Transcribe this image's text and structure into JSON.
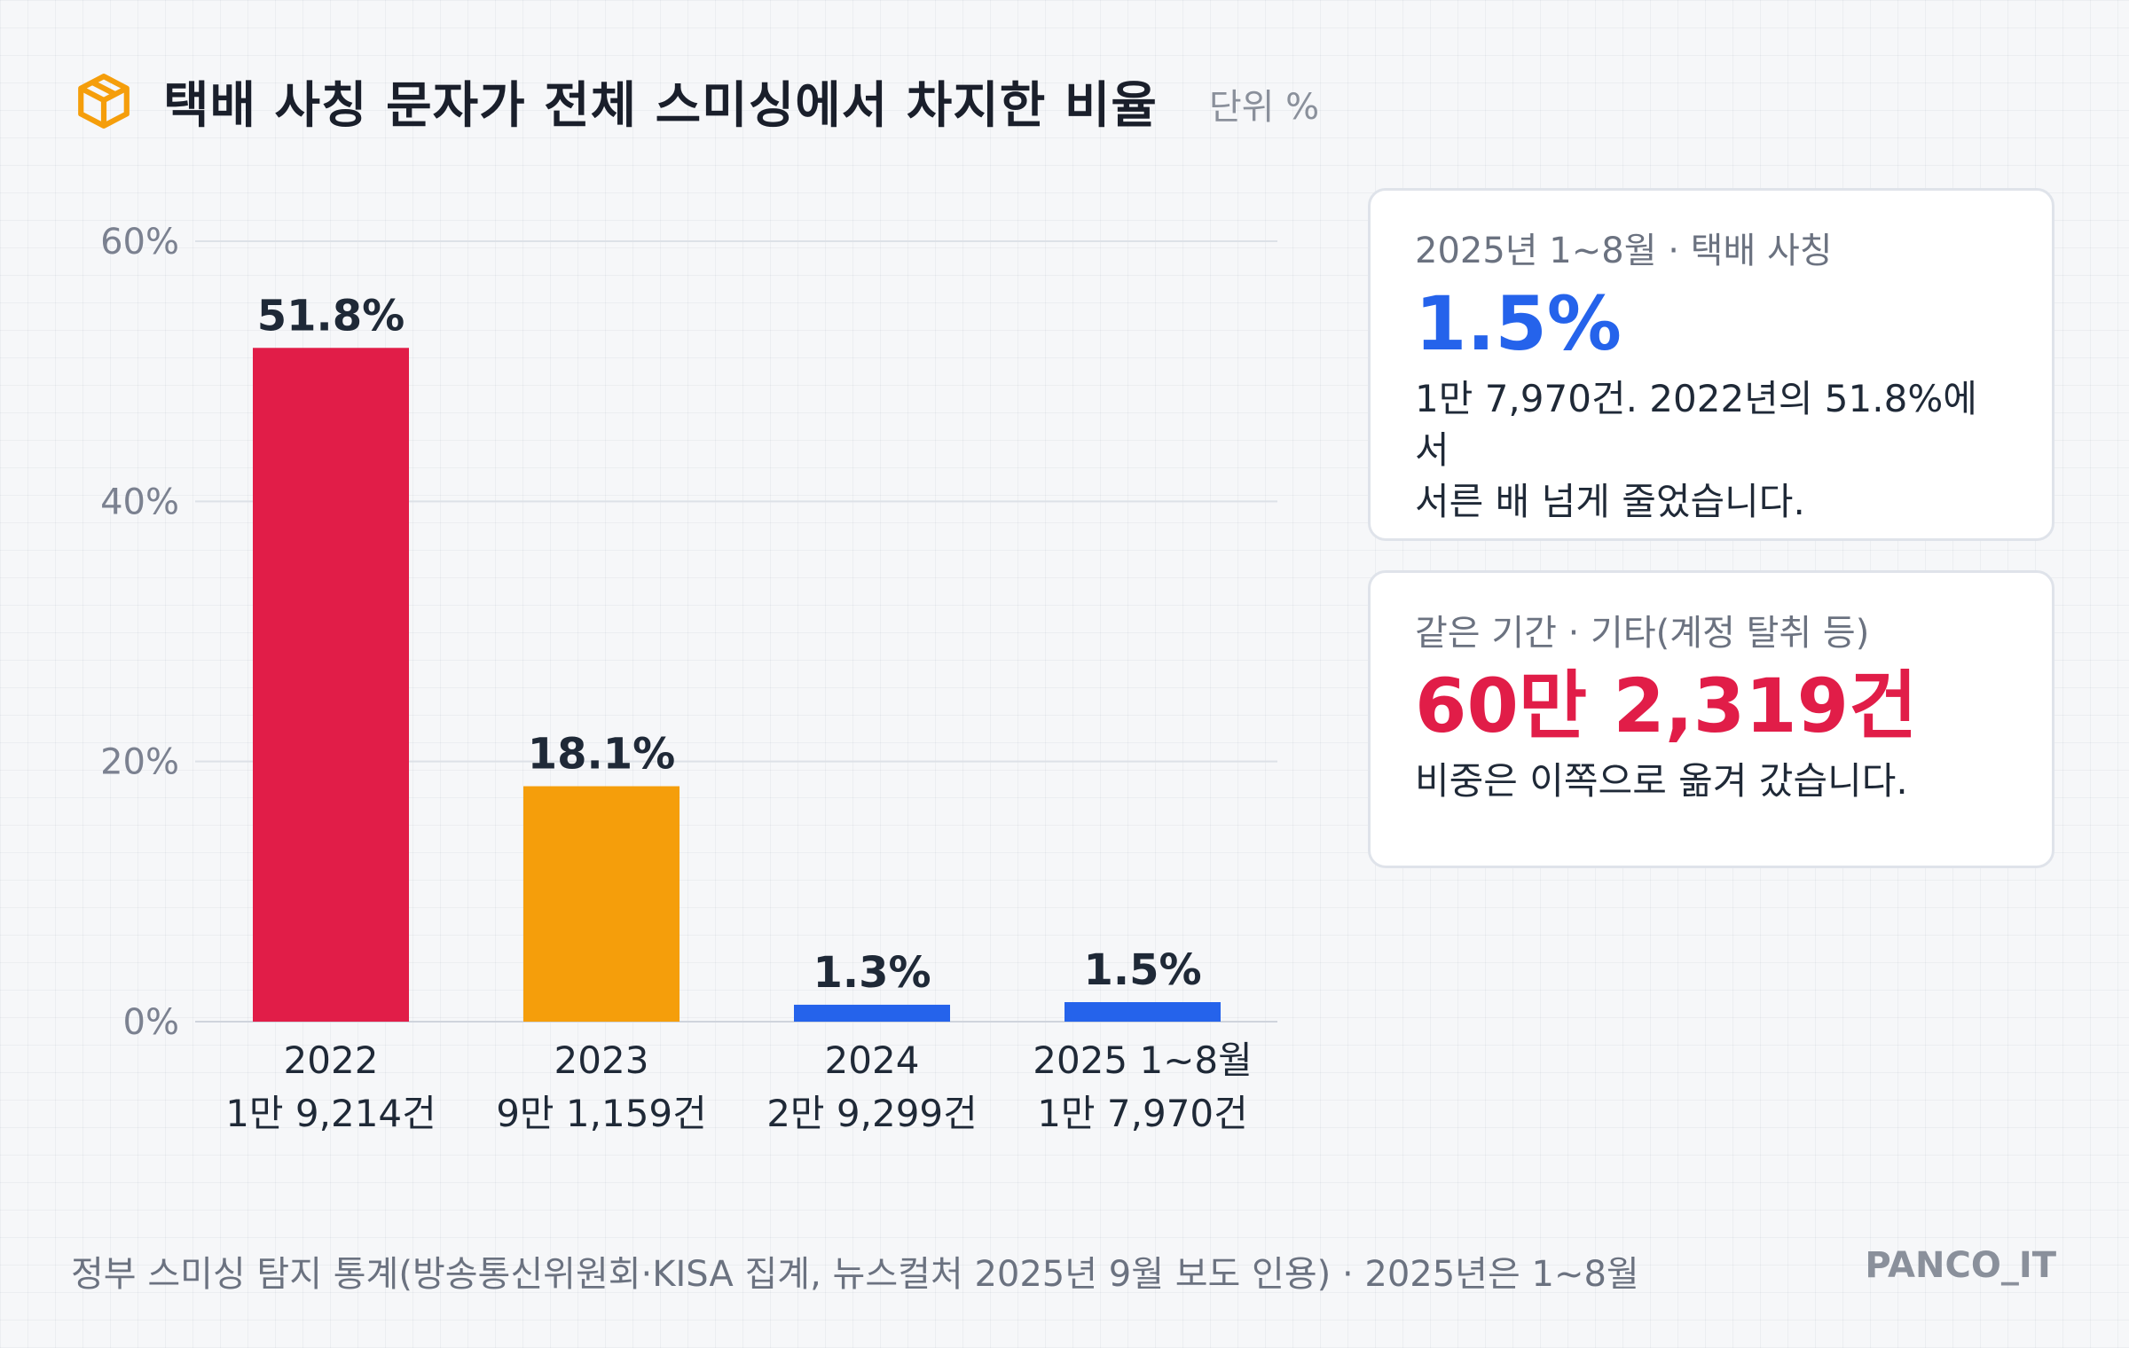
{
  "header": {
    "icon": "package-box-icon",
    "title": "택배 사칭 문자가 전체 스미싱에서 차지한 비율",
    "unit": "단위 %"
  },
  "chart_data": {
    "type": "bar",
    "categories": [
      "2022",
      "2023",
      "2024",
      "2025 1~8월"
    ],
    "category_counts": [
      "1만 9,214건",
      "9만 1,159건",
      "2만 9,299건",
      "1만 7,970건"
    ],
    "values": [
      51.8,
      18.1,
      1.3,
      1.5
    ],
    "value_labels": [
      "51.8%",
      "18.1%",
      "1.3%",
      "1.5%"
    ],
    "bar_colors": [
      "#e11d48",
      "#f59e0b",
      "#2563eb",
      "#2563eb"
    ],
    "yticks": [
      0,
      20,
      40,
      60
    ],
    "ytick_labels": [
      "0%",
      "20%",
      "40%",
      "60%"
    ],
    "ylim": [
      0,
      60
    ],
    "grid": true,
    "title": "택배 사칭 문자가 전체 스미싱에서 차지한 비율",
    "ylabel": "",
    "xlabel": ""
  },
  "cards": {
    "card1": {
      "label": "2025년 1~8월 · 택배 사칭",
      "value": "1.5%",
      "desc_line1": "1만 7,970건. 2022년의 51.8%에서",
      "desc_line2": "서른 배 넘게 줄었습니다."
    },
    "card2": {
      "label": "같은 기간 · 기타(계정 탈취 등)",
      "value": "60만 2,319건",
      "desc_line1": "비중은 이쪽으로 옮겨 갔습니다."
    }
  },
  "footer": {
    "source": "정부 스미싱 탐지 통계(방송통신위원회·KISA 집계, 뉴스컬처 2025년 9월 보도 인용) · 2025년은 1~8월",
    "brand": "PANCO_IT"
  },
  "colors": {
    "accent_red": "#e11d48",
    "accent_orange": "#f59e0b",
    "accent_blue": "#2563eb"
  }
}
